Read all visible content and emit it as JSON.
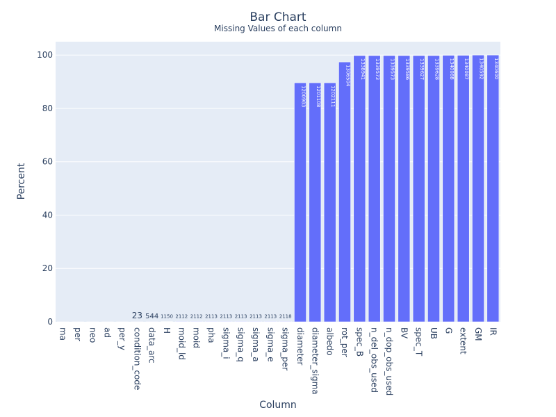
{
  "chart_data": {
    "type": "bar",
    "title": "Bar Chart",
    "subtitle": "Missing Values of each column",
    "xlabel": "Column",
    "ylabel": "Percent",
    "ylim": [
      0,
      105
    ],
    "yticks": [
      0,
      20,
      40,
      60,
      80,
      100
    ],
    "grid": true,
    "bar_color": "#636efa",
    "plot_background": "#e5ecf6",
    "categories": [
      "ma",
      "per",
      "neo",
      "ad",
      "per_y",
      "condition_code",
      "data_arc",
      "H",
      "moid_ld",
      "moid",
      "pha",
      "sigma_i",
      "sigma_q",
      "sigma_a",
      "sigma_e",
      "sigma_per",
      "diameter",
      "diameter_sigma",
      "albedo",
      "rot_per",
      "spec_B",
      "n_del_obs_used",
      "n_dop_obs_used",
      "BV",
      "spec_T",
      "UB",
      "G",
      "extent",
      "GM",
      "IR"
    ],
    "values": [
      0.0001,
      0.0002,
      0.0004,
      0.0004,
      0.0004,
      0.0017,
      0.0406,
      0.0858,
      0.1576,
      0.1576,
      0.1576,
      0.1576,
      0.1576,
      0.1576,
      0.1576,
      0.1581,
      89.6,
      89.6,
      89.6,
      97.4,
      99.8,
      99.8,
      99.8,
      99.8,
      99.8,
      99.8,
      99.9,
      99.9,
      99.99,
      100.0
    ],
    "data_labels": [
      "",
      "",
      "",
      "",
      "",
      "23",
      "544",
      "1150",
      "2112",
      "2112",
      "2113",
      "2113",
      "2113",
      "2113",
      "2113",
      "2118",
      "1200983",
      "1201108",
      "1202111",
      "1306504",
      "1338941",
      "1339573",
      "1339573",
      "1339586",
      "1339627",
      "1339628",
      "1340088",
      "1340087",
      "1340592",
      "1340600"
    ]
  }
}
